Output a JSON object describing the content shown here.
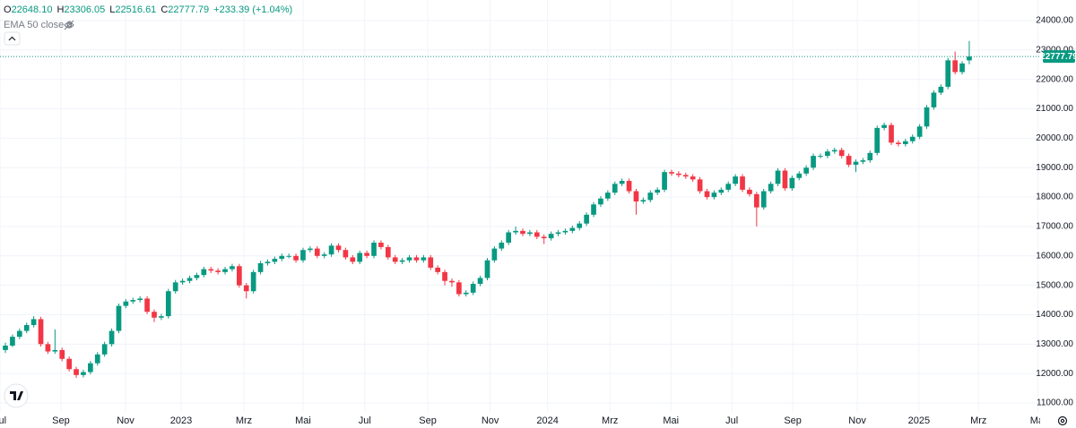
{
  "chart_data": {
    "type": "candlestick",
    "legend": [
      {
        "key": "O",
        "value": "22648.10"
      },
      {
        "key": "H",
        "value": "23306.05"
      },
      {
        "key": "L",
        "value": "22516.61"
      },
      {
        "key": "C",
        "value": "22777.79"
      }
    ],
    "change": "+233.39 (+1.04%)",
    "indicator": "EMA 50 close 0",
    "up_color": "#089981",
    "down_color": "#f23645",
    "grid": true,
    "open": [
      12800,
      12950,
      13250,
      13450,
      13650,
      13850,
      13000,
      12750,
      12800,
      12500,
      12150,
      11950,
      12050,
      12350,
      12650,
      13000,
      13450,
      14300,
      14450,
      14500,
      14550,
      14100,
      13900,
      13950,
      14800,
      15100,
      15150,
      15250,
      15350,
      15550,
      15500,
      15450,
      15550,
      15650,
      15000,
      14800,
      15450,
      15750,
      15800,
      15900,
      16000,
      16000,
      15850,
      16200,
      16250,
      16000,
      16050,
      16350,
      16200,
      15950,
      15800,
      16100,
      16000,
      16450,
      16300,
      15950,
      15800,
      15850,
      15950,
      15850,
      15950,
      15600,
      15450,
      15150,
      15100,
      14700,
      14750,
      15050,
      15250,
      15850,
      16250,
      16450,
      16800,
      16850,
      16750,
      16800,
      16650,
      16600,
      16750,
      16800,
      16850,
      16950,
      17100,
      17400,
      17750,
      17950,
      18150,
      18450,
      18550,
      18200,
      17850,
      17900,
      18150,
      18250,
      18850,
      18800,
      18750,
      18700,
      18600,
      18200,
      18000,
      18150,
      18250,
      18450,
      18700,
      18250,
      18100,
      17650,
      18200,
      18450,
      18900,
      18300,
      18650,
      18800,
      19000,
      19400,
      19400,
      19550,
      19600,
      19400,
      19100,
      19200,
      19250,
      19500,
      20350,
      20450,
      19850,
      19800,
      19900,
      20050,
      20400,
      21050,
      21550,
      21750,
      22650,
      22250,
      22648.1
    ],
    "high": [
      13050,
      13330,
      13530,
      13730,
      13950,
      13930,
      13080,
      13500,
      12880,
      12580,
      12230,
      12130,
      12430,
      12730,
      13080,
      13530,
      14380,
      14530,
      14580,
      14630,
      14630,
      14180,
      14030,
      14880,
      15180,
      15230,
      15330,
      15430,
      15630,
      15630,
      15580,
      15630,
      15730,
      15730,
      15080,
      15530,
      15830,
      15880,
      15980,
      16080,
      16080,
      16080,
      16280,
      16330,
      16330,
      16130,
      16430,
      16430,
      16280,
      16030,
      16180,
      16180,
      16530,
      16530,
      16380,
      16030,
      15930,
      16030,
      16030,
      16030,
      16030,
      15680,
      15530,
      15230,
      15180,
      14830,
      15130,
      15330,
      15930,
      16330,
      16530,
      16880,
      17000,
      16930,
      16880,
      16880,
      16730,
      16830,
      16880,
      16930,
      17030,
      17180,
      17480,
      17830,
      18030,
      18230,
      18530,
      18630,
      18630,
      18280,
      17980,
      18230,
      18330,
      18930,
      18930,
      18880,
      18830,
      18780,
      18680,
      18280,
      18230,
      18330,
      18530,
      18780,
      18780,
      18330,
      18180,
      18280,
      18530,
      18980,
      18980,
      18730,
      18880,
      19080,
      19480,
      19480,
      19630,
      19680,
      19680,
      19480,
      19280,
      19330,
      19580,
      20430,
      20530,
      20530,
      19930,
      19980,
      20130,
      20480,
      21130,
      21630,
      21830,
      22730,
      22950,
      22620,
      23306.05
    ],
    "low": [
      12700,
      12900,
      13170,
      13370,
      13570,
      12920,
      12670,
      12670,
      12420,
      12070,
      11850,
      11870,
      11970,
      12270,
      12570,
      12920,
      13370,
      14220,
      14370,
      14420,
      14020,
      13750,
      13820,
      13870,
      14720,
      15020,
      15070,
      15170,
      15270,
      15420,
      15370,
      15370,
      15470,
      14920,
      14550,
      14720,
      15370,
      15670,
      15720,
      15820,
      15920,
      15770,
      15770,
      16120,
      15920,
      15920,
      15970,
      16120,
      15870,
      15720,
      15720,
      15920,
      15920,
      16220,
      15870,
      15720,
      15720,
      15770,
      15770,
      15770,
      15520,
      15370,
      15000,
      14950,
      14620,
      14620,
      14670,
      14970,
      15170,
      15770,
      16170,
      16370,
      16720,
      16670,
      16670,
      16570,
      16400,
      16520,
      16670,
      16720,
      16770,
      16870,
      17020,
      17320,
      17670,
      17870,
      18070,
      18370,
      18120,
      17400,
      17770,
      17820,
      18070,
      18170,
      18720,
      18670,
      18620,
      18520,
      18120,
      17920,
      17920,
      18070,
      18170,
      18370,
      18170,
      18020,
      17000,
      17570,
      18120,
      18370,
      18220,
      18220,
      18570,
      18720,
      18920,
      19320,
      19320,
      19470,
      19320,
      19020,
      18850,
      19120,
      19170,
      19420,
      20270,
      19770,
      19720,
      19720,
      19820,
      19970,
      20320,
      20970,
      21470,
      21670,
      22170,
      22170,
      22516.61
    ],
    "close": [
      12950,
      13250,
      13450,
      13650,
      13850,
      13000,
      12750,
      12800,
      12500,
      12150,
      11950,
      12050,
      12350,
      12650,
      13000,
      13450,
      14300,
      14450,
      14500,
      14550,
      14100,
      13900,
      13950,
      14800,
      15100,
      15150,
      15250,
      15350,
      15550,
      15500,
      15450,
      15550,
      15650,
      15000,
      14800,
      15450,
      15750,
      15800,
      15900,
      16000,
      16000,
      15850,
      16200,
      16250,
      16000,
      16050,
      16350,
      16200,
      15950,
      15800,
      16100,
      16000,
      16450,
      16300,
      15950,
      15800,
      15850,
      15950,
      15850,
      15950,
      15600,
      15450,
      15150,
      15100,
      14700,
      14750,
      15050,
      15250,
      15850,
      16250,
      16450,
      16800,
      16850,
      16750,
      16800,
      16650,
      16600,
      16750,
      16800,
      16850,
      16950,
      17100,
      17400,
      17750,
      17950,
      18150,
      18450,
      18550,
      18200,
      17850,
      17900,
      18150,
      18250,
      18850,
      18800,
      18750,
      18700,
      18600,
      18200,
      18000,
      18150,
      18250,
      18450,
      18700,
      18250,
      18100,
      17650,
      18200,
      18450,
      18900,
      18300,
      18650,
      18800,
      19000,
      19400,
      19400,
      19550,
      19600,
      19400,
      19100,
      19200,
      19250,
      19500,
      20350,
      20450,
      19850,
      19800,
      19900,
      20050,
      20400,
      21050,
      21550,
      21750,
      22650,
      22250,
      22544.4,
      22777.79
    ],
    "xlim": [
      -0.76,
      146.0
    ],
    "xticks": [
      {
        "value": -0.76,
        "label": "Jul"
      },
      {
        "value": 7.84,
        "label": "Sep"
      },
      {
        "value": 16.95,
        "label": "Nov"
      },
      {
        "value": 24.8,
        "label": "2023"
      },
      {
        "value": 33.65,
        "label": "Mrz"
      },
      {
        "value": 42.0,
        "label": "Mai"
      },
      {
        "value": 50.7,
        "label": "Jul"
      },
      {
        "value": 59.6,
        "label": "Sep"
      },
      {
        "value": 68.4,
        "label": "Nov"
      },
      {
        "value": 76.5,
        "label": "2024"
      },
      {
        "value": 85.3,
        "label": "Mrz"
      },
      {
        "value": 93.9,
        "label": "Mai"
      },
      {
        "value": 102.5,
        "label": "Jul"
      },
      {
        "value": 111.1,
        "label": "Sep"
      },
      {
        "value": 120.2,
        "label": "Nov"
      },
      {
        "value": 128.9,
        "label": "2025"
      },
      {
        "value": 137.3,
        "label": "Mrz"
      },
      {
        "value": 145.7,
        "label": "Mai"
      }
    ],
    "ylim": [
      10697,
      24700
    ],
    "yticks": [
      {
        "value": 11000,
        "label": "11000.00"
      },
      {
        "value": 12000,
        "label": "12000.00"
      },
      {
        "value": 13000,
        "label": "13000.00"
      },
      {
        "value": 14000,
        "label": "14000.00"
      },
      {
        "value": 15000,
        "label": "15000.00"
      },
      {
        "value": 16000,
        "label": "16000.00"
      },
      {
        "value": 17000,
        "label": "17000.00"
      },
      {
        "value": 18000,
        "label": "18000.00"
      },
      {
        "value": 19000,
        "label": "19000.00"
      },
      {
        "value": 20000,
        "label": "20000.00"
      },
      {
        "value": 21000,
        "label": "21000.00"
      },
      {
        "value": 22000,
        "label": "22000.00"
      },
      {
        "value": 23000,
        "label": "23000.00"
      },
      {
        "value": 24000,
        "label": "24000.00"
      }
    ]
  }
}
